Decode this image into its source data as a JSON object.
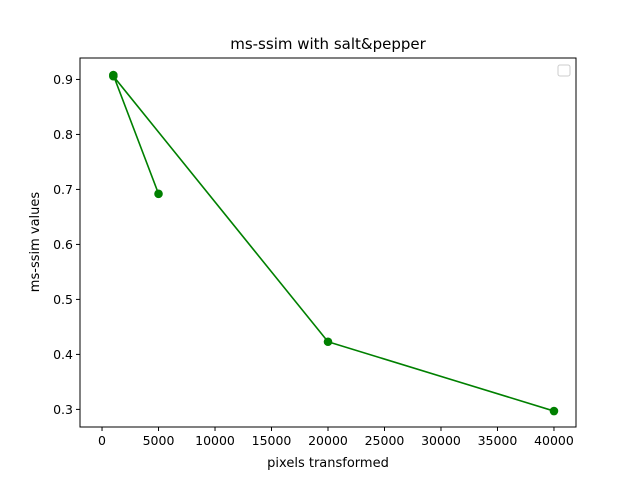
{
  "chart_data": {
    "type": "line",
    "title": "ms-ssim with salt&pepper",
    "xlabel": "pixels transformed",
    "ylabel": "ms-ssim values",
    "xlim": [
      -1950,
      41950
    ],
    "ylim": [
      0.268,
      0.939
    ],
    "xticks": [
      0,
      5000,
      10000,
      15000,
      20000,
      25000,
      30000,
      35000,
      40000
    ],
    "yticks": [
      0.3,
      0.4,
      0.5,
      0.6,
      0.7,
      0.8,
      0.9
    ],
    "grid": false,
    "legend": "top-right",
    "series": [
      {
        "color": "#008000",
        "marker": "circle",
        "x": [
          5000,
          1000,
          1000,
          20000,
          40000
        ],
        "y": [
          0.692,
          0.908,
          0.906,
          0.423,
          0.297
        ]
      }
    ]
  }
}
